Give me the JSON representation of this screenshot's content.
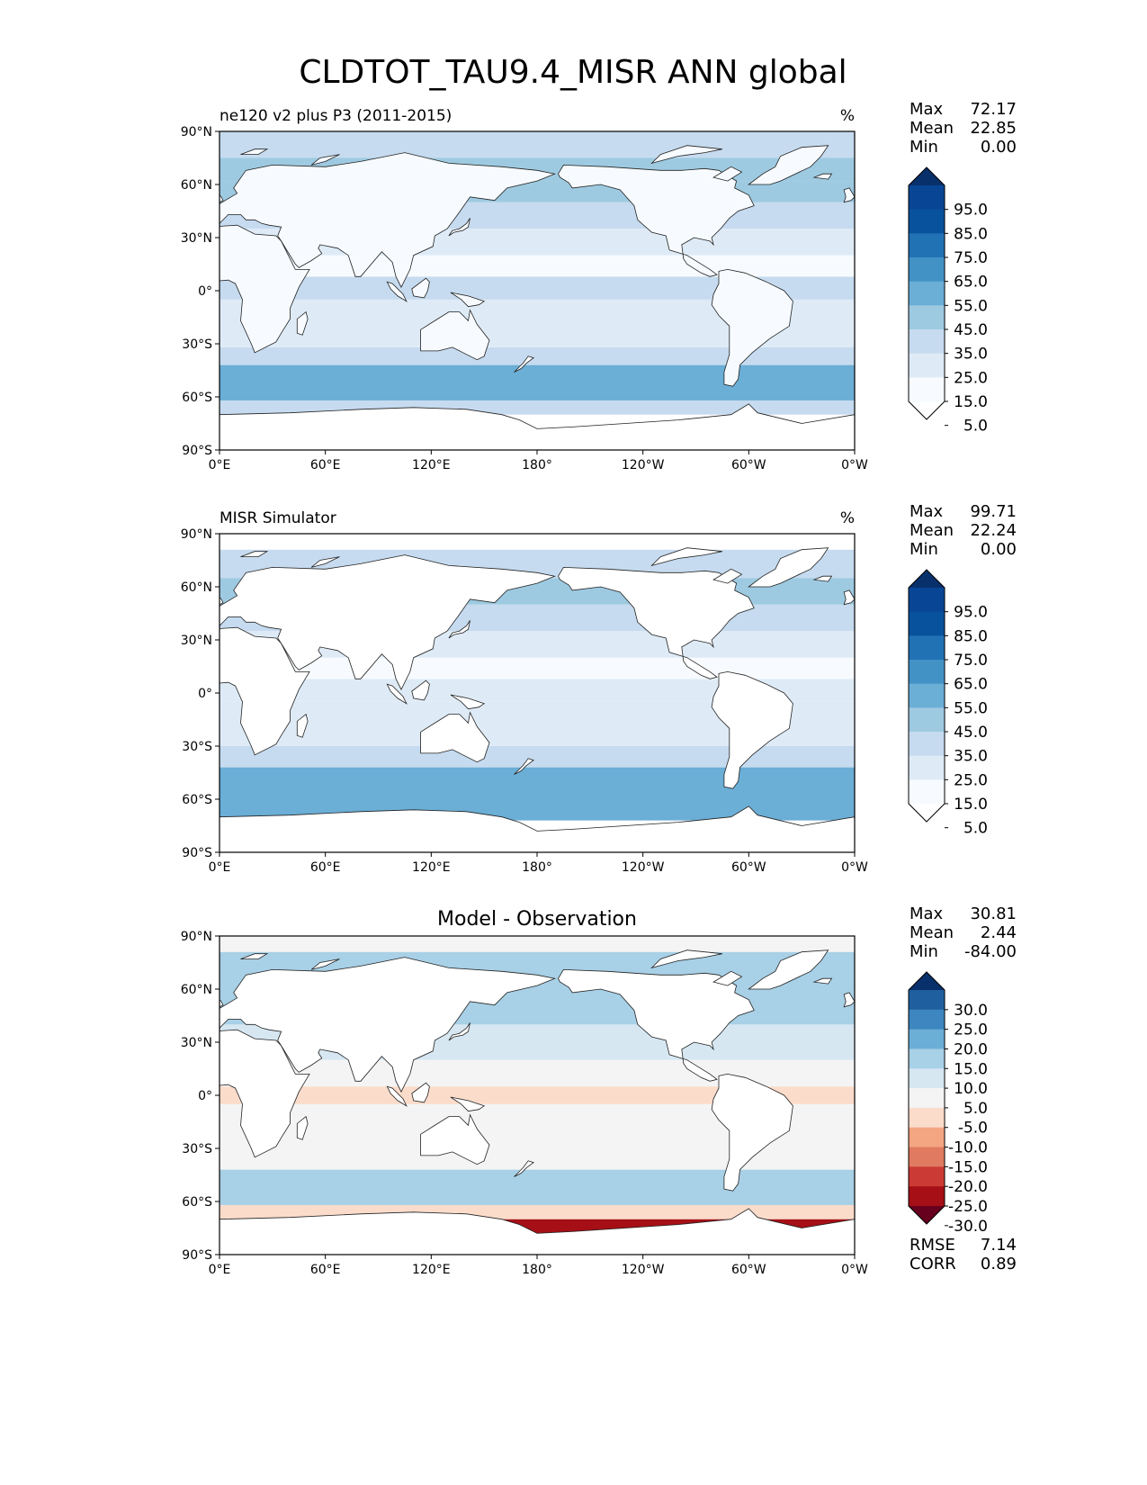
{
  "figure_title": "CLDTOT_TAU9.4_MISR ANN global",
  "chart_data": [
    {
      "type": "heatmap",
      "panel": "test",
      "title_left": "ne120 v2 plus P3 (2011-2015)",
      "title_center": "",
      "units": "%",
      "stats": {
        "labels": [
          "Max",
          "Mean",
          "Min"
        ],
        "values": [
          "72.17",
          "22.85",
          "0.00"
        ]
      },
      "colorbar": {
        "levels": [
          0,
          5,
          15,
          25,
          35,
          45,
          55,
          65,
          75,
          85,
          95,
          100
        ],
        "tick_labels": [
          "95.0",
          "85.0",
          "75.0",
          "65.0",
          "55.0",
          "45.0",
          "35.0",
          "25.0",
          "15.0",
          "5.0"
        ],
        "colors": [
          "#ffffff",
          "#f7fbff",
          "#deebf7",
          "#c6dbef",
          "#9ecae1",
          "#6baed6",
          "#4292c6",
          "#2171b5",
          "#08519c",
          "#084594",
          "#08306b"
        ],
        "extend": "both"
      },
      "lat_bands": [
        {
          "lat": [
            -90,
            -70
          ],
          "v": 3
        },
        {
          "lat": [
            -70,
            -62
          ],
          "v": 28
        },
        {
          "lat": [
            -62,
            -42
          ],
          "v": 50
        },
        {
          "lat": [
            -42,
            -32
          ],
          "v": 30
        },
        {
          "lat": [
            -32,
            -15
          ],
          "v": 18
        },
        {
          "lat": [
            -15,
            -5
          ],
          "v": 22
        },
        {
          "lat": [
            -5,
            8
          ],
          "v": 26
        },
        {
          "lat": [
            8,
            20
          ],
          "v": 14
        },
        {
          "lat": [
            20,
            35
          ],
          "v": 18
        },
        {
          "lat": [
            35,
            50
          ],
          "v": 34
        },
        {
          "lat": [
            50,
            62
          ],
          "v": 44
        },
        {
          "lat": [
            62,
            75
          ],
          "v": 35
        },
        {
          "lat": [
            75,
            90
          ],
          "v": 30
        }
      ]
    },
    {
      "type": "heatmap",
      "panel": "reference",
      "title_left": "MISR Simulator",
      "title_center": "",
      "units": "%",
      "stats": {
        "labels": [
          "Max",
          "Mean",
          "Min"
        ],
        "values": [
          "99.71",
          "22.24",
          "0.00"
        ]
      },
      "colorbar": {
        "levels": [
          0,
          5,
          15,
          25,
          35,
          45,
          55,
          65,
          75,
          85,
          95,
          100
        ],
        "tick_labels": [
          "95.0",
          "85.0",
          "75.0",
          "65.0",
          "55.0",
          "45.0",
          "35.0",
          "25.0",
          "15.0",
          "5.0"
        ],
        "colors": [
          "#ffffff",
          "#f7fbff",
          "#deebf7",
          "#c6dbef",
          "#9ecae1",
          "#6baed6",
          "#4292c6",
          "#2171b5",
          "#08519c",
          "#084594",
          "#08306b"
        ],
        "extend": "both"
      },
      "lat_bands": [
        {
          "lat": [
            -90,
            -72
          ],
          "v": 0
        },
        {
          "lat": [
            -72,
            -42
          ],
          "v": 45
        },
        {
          "lat": [
            -42,
            -30
          ],
          "v": 28
        },
        {
          "lat": [
            -30,
            -15
          ],
          "v": 16
        },
        {
          "lat": [
            -15,
            -5
          ],
          "v": 20
        },
        {
          "lat": [
            -5,
            8
          ],
          "v": 22
        },
        {
          "lat": [
            8,
            20
          ],
          "v": 12
        },
        {
          "lat": [
            20,
            35
          ],
          "v": 18
        },
        {
          "lat": [
            35,
            50
          ],
          "v": 30
        },
        {
          "lat": [
            50,
            65
          ],
          "v": 40
        },
        {
          "lat": [
            65,
            81
          ],
          "v": 32
        },
        {
          "lat": [
            81,
            90
          ],
          "v": 0
        }
      ]
    },
    {
      "type": "heatmap",
      "panel": "diff",
      "title_left": "",
      "title_center": "Model - Observation",
      "units": "",
      "stats": {
        "labels": [
          "Max",
          "Mean",
          "Min"
        ],
        "values": [
          "30.81",
          "2.44",
          "-84.00"
        ]
      },
      "extra_stats": {
        "labels": [
          "RMSE",
          "CORR"
        ],
        "values": [
          "7.14",
          "0.89"
        ]
      },
      "colorbar": {
        "levels": [
          -100,
          -30,
          -25,
          -20,
          -15,
          -10,
          -5,
          5,
          10,
          15,
          20,
          25,
          30,
          100
        ],
        "tick_labels": [
          "30.0",
          "25.0",
          "20.0",
          "15.0",
          "10.0",
          "5.0",
          "-5.0",
          "-10.0",
          "-15.0",
          "-20.0",
          "-25.0",
          "-30.0"
        ],
        "colors": [
          "#67001f",
          "#a50f15",
          "#cb3a34",
          "#e07a60",
          "#f4a582",
          "#fbdccb",
          "#f4f4f4",
          "#d6e7f2",
          "#a8d0e6",
          "#6baed6",
          "#3d86bf",
          "#1f5f9f",
          "#08306b"
        ],
        "extend": "both"
      },
      "lat_bands": [
        {
          "lat": [
            -90,
            -78
          ],
          "v": 0
        },
        {
          "lat": [
            -78,
            -70
          ],
          "v": -28
        },
        {
          "lat": [
            -70,
            -62
          ],
          "v": -8
        },
        {
          "lat": [
            -62,
            -42
          ],
          "v": 11
        },
        {
          "lat": [
            -42,
            -30
          ],
          "v": 3
        },
        {
          "lat": [
            -30,
            -5
          ],
          "v": 0
        },
        {
          "lat": [
            -5,
            5
          ],
          "v": -6
        },
        {
          "lat": [
            5,
            20
          ],
          "v": 2
        },
        {
          "lat": [
            20,
            40
          ],
          "v": 8
        },
        {
          "lat": [
            40,
            60
          ],
          "v": 12
        },
        {
          "lat": [
            60,
            81
          ],
          "v": 14
        },
        {
          "lat": [
            81,
            90
          ],
          "v": 0
        }
      ]
    }
  ],
  "axes": {
    "xticks": [
      "0°E",
      "60°E",
      "120°E",
      "180°",
      "120°W",
      "60°W",
      "0°W"
    ],
    "yticks": [
      "90°N",
      "60°N",
      "30°N",
      "0°",
      "30°S",
      "60°S",
      "90°S"
    ]
  },
  "map_colors": {
    "land": "#ffffff",
    "coast": "#222222"
  }
}
